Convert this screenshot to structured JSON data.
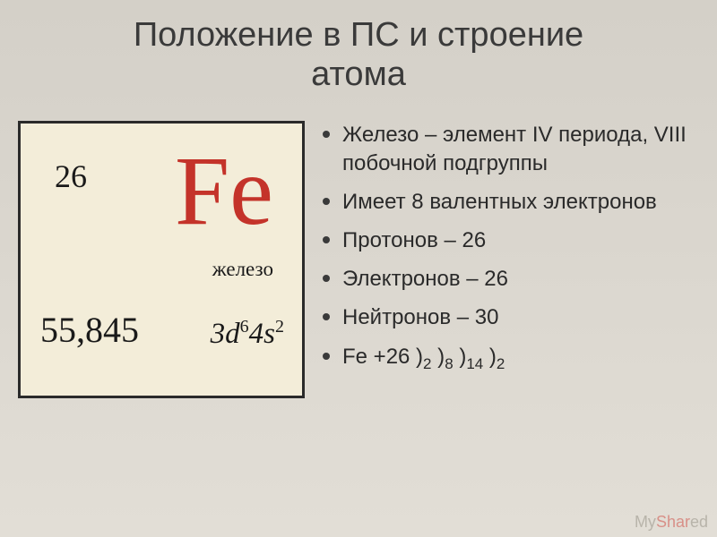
{
  "title_line1": "Положение в ПС и строение",
  "title_line2": "атома",
  "element": {
    "atomic_number": "26",
    "symbol": "Fe",
    "name": "железо",
    "mass": "55,845",
    "config_d": "3d",
    "config_d_sup": "6",
    "config_s": "4s",
    "config_s_sup": "2",
    "symbol_color": "#c4332a",
    "box_bg": "#f3edd9",
    "box_border": "#2a2a2a"
  },
  "bullets": {
    "b0": "Железо – элемент IV периода, VIII побочной подгруппы",
    "b1": "Имеет 8 валентных электронов",
    "b2": "Протонов – 26",
    "b3": "Электронов – 26",
    "b4": "Нейтронов – 30",
    "b5_prefix": "Fe  +26 )",
    "b5_s1": "2",
    "b5_m1": " )",
    "b5_s2": "8",
    "b5_m2": " )",
    "b5_s3": "14",
    "b5_m3": " )",
    "b5_s4": "2"
  },
  "watermark": {
    "t1": "My",
    "t2": "Shar",
    "t3": "ed"
  },
  "style": {
    "bg_top": "#d4d0c8",
    "bg_bottom": "#e2ded6",
    "title_fontsize": 38,
    "bullet_fontsize": 24,
    "bullet_dot_color": "#3a3a3a"
  }
}
